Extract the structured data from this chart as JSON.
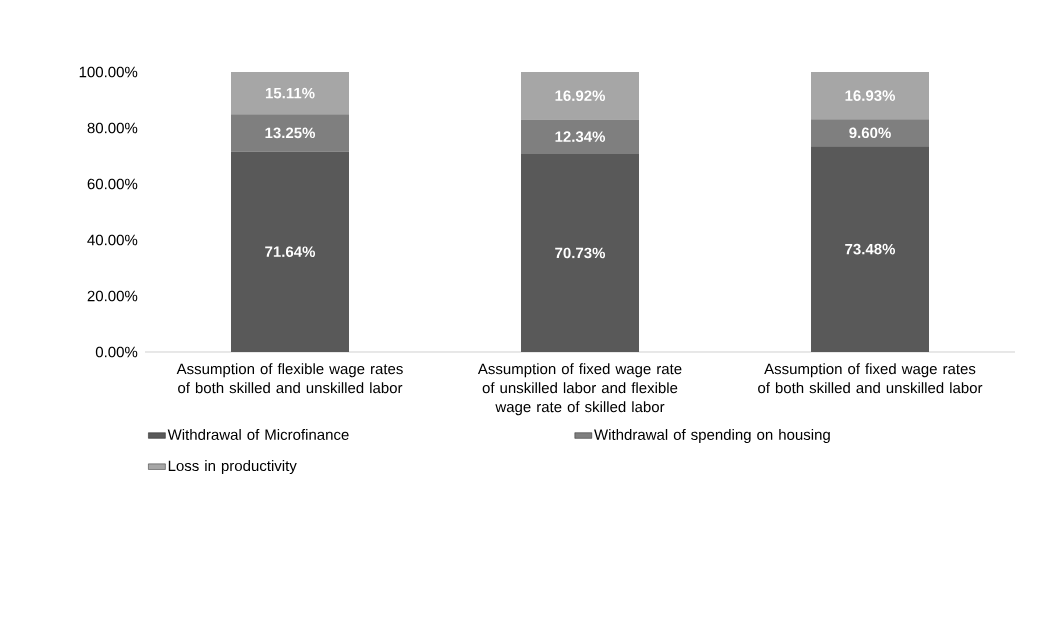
{
  "chart_data": {
    "type": "bar",
    "stacked": true,
    "categories": [
      "Assumption of flexible wage rates of both skilled and unskilled labor",
      "Assumption of fixed wage rate of unskilled labor and flexible wage rate of skilled labor",
      "Assumption of fixed wage rates of both skilled and unskilled labor"
    ],
    "series": [
      {
        "name": "Withdrawal of Microfinance",
        "color": "#595959",
        "values": [
          71.64,
          70.73,
          73.48
        ],
        "value_labels": [
          "71.64%",
          "70.73%",
          "73.48%"
        ]
      },
      {
        "name": "Withdrawal of spending on housing",
        "color": "#7f7f7f",
        "values": [
          13.25,
          12.34,
          9.6
        ],
        "value_labels": [
          "13.25%",
          "12.34%",
          "9.60%"
        ]
      },
      {
        "name": "Loss in productivity",
        "color": "#a6a6a6",
        "values": [
          15.11,
          16.92,
          16.93
        ],
        "value_labels": [
          "15.11%",
          "16.92%",
          "16.93%"
        ]
      }
    ],
    "ylim": [
      0,
      100
    ],
    "yticks": [
      {
        "value": 0,
        "label": "0.00%"
      },
      {
        "value": 20,
        "label": "20.00%"
      },
      {
        "value": 40,
        "label": "40.00%"
      },
      {
        "value": 60,
        "label": "60.00%"
      },
      {
        "value": 80,
        "label": "80.00%"
      },
      {
        "value": 100,
        "label": "100.00%"
      }
    ],
    "grid": false,
    "legend": "bottom"
  }
}
